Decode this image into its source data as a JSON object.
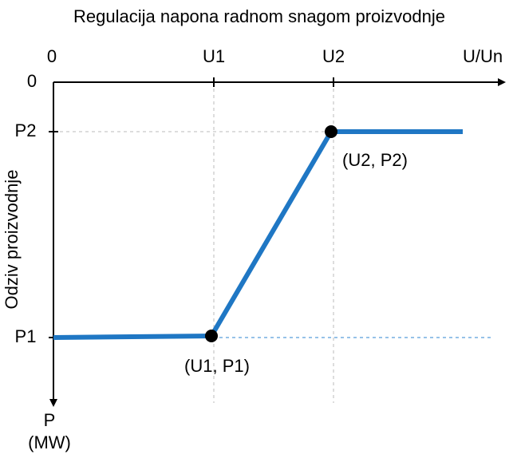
{
  "title": "Regulacija napona radnom snagom proizvodnje",
  "x_axis": {
    "label": "U/Un",
    "ticks": [
      "0",
      "U1",
      "U2"
    ]
  },
  "y_axis": {
    "label": "Odziv proizvodnje",
    "ticks": [
      "0",
      "P2",
      "P1"
    ],
    "unit": [
      "P",
      "(MW)"
    ]
  },
  "points": [
    {
      "label": "(U1, P1)"
    },
    {
      "label": "(U2, P2)"
    }
  ]
}
